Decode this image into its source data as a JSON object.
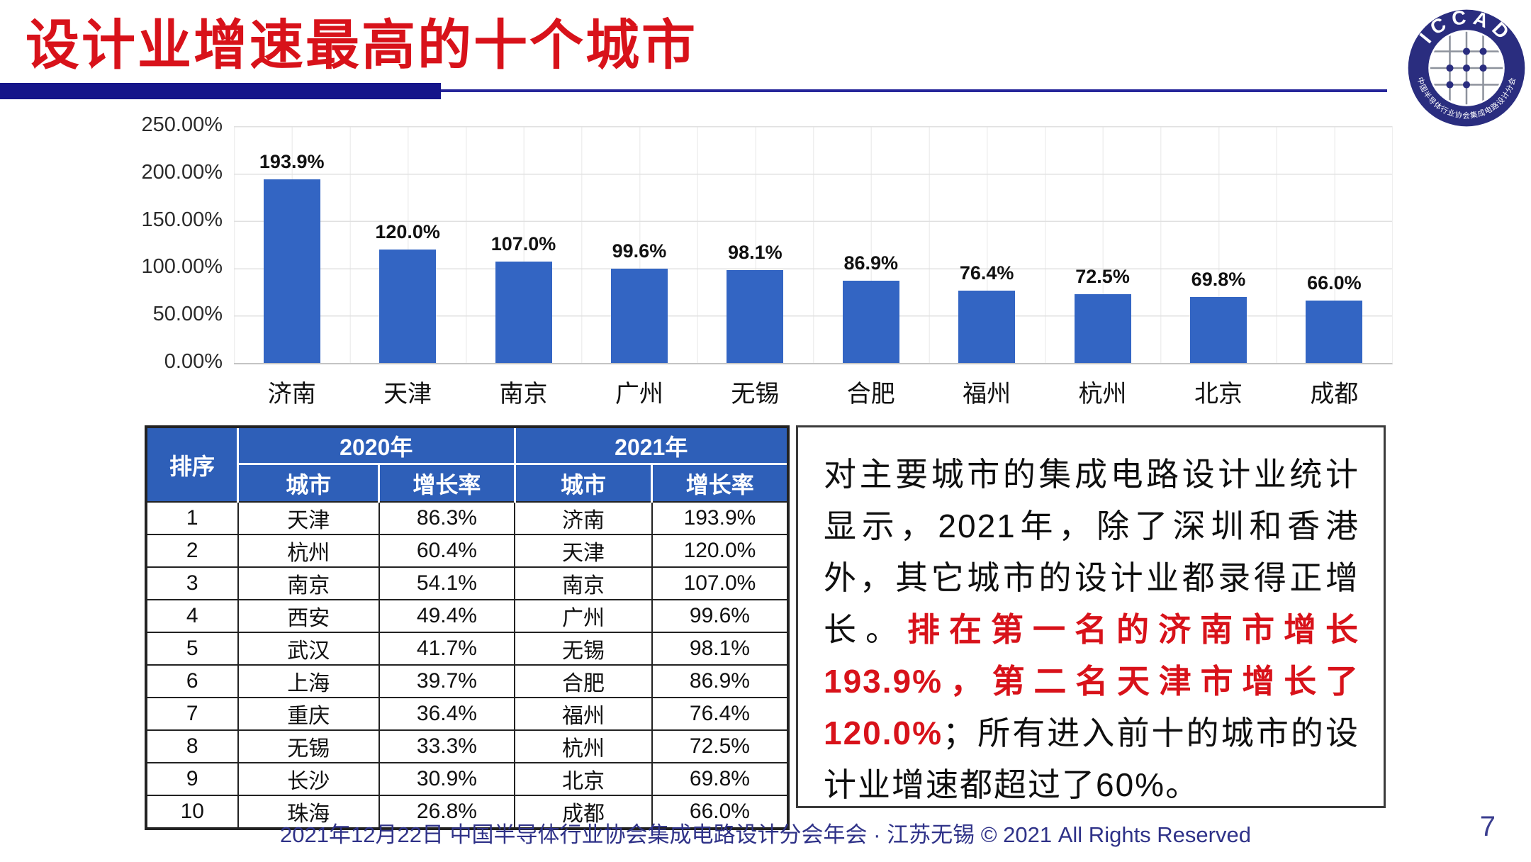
{
  "title": "设计业增速最高的十个城市",
  "colors": {
    "bar_blue": "#3365C3",
    "table_header_blue": "#2E5FB8",
    "accent_red": "#D8121A",
    "divider_navy": "#15158A",
    "footer_navy": "#2F3288"
  },
  "chart_data": {
    "type": "bar",
    "title": "",
    "xlabel": "",
    "ylabel": "",
    "categories": [
      "济南",
      "天津",
      "南京",
      "广州",
      "无锡",
      "合肥",
      "福州",
      "杭州",
      "北京",
      "成都"
    ],
    "values": [
      193.9,
      120.0,
      107.0,
      99.6,
      98.1,
      86.9,
      76.4,
      72.5,
      69.8,
      66.0
    ],
    "labels": [
      "193.9%",
      "120.0%",
      "107.0%",
      "99.6%",
      "98.1%",
      "86.9%",
      "76.4%",
      "72.5%",
      "69.8%",
      "66.0%"
    ],
    "yticks": [
      "250.00%",
      "200.00%",
      "150.00%",
      "100.00%",
      "50.00%",
      "0.00%"
    ],
    "ylim": [
      0,
      250
    ],
    "grid": "horizontal and vertical light gray",
    "legend": "none",
    "bar_color": "#3365C3"
  },
  "table": {
    "rank_header": "排序",
    "year_groups": [
      "2020年",
      "2021年"
    ],
    "sub_headers": [
      "城市",
      "增长率",
      "城市",
      "增长率"
    ],
    "rows": [
      [
        "1",
        "天津",
        "86.3%",
        "济南",
        "193.9%"
      ],
      [
        "2",
        "杭州",
        "60.4%",
        "天津",
        "120.0%"
      ],
      [
        "3",
        "南京",
        "54.1%",
        "南京",
        "107.0%"
      ],
      [
        "4",
        "西安",
        "49.4%",
        "广州",
        "99.6%"
      ],
      [
        "5",
        "武汉",
        "41.7%",
        "无锡",
        "98.1%"
      ],
      [
        "6",
        "上海",
        "39.7%",
        "合肥",
        "86.9%"
      ],
      [
        "7",
        "重庆",
        "36.4%",
        "福州",
        "76.4%"
      ],
      [
        "8",
        "无锡",
        "33.3%",
        "杭州",
        "72.5%"
      ],
      [
        "9",
        "长沙",
        "30.9%",
        "北京",
        "69.8%"
      ],
      [
        "10",
        "珠海",
        "26.8%",
        "成都",
        "66.0%"
      ]
    ]
  },
  "textbox": {
    "segments": [
      {
        "text": "对主要城市的集成电路设计业统计显示，2021年，除了深圳和香港外，其它城市的设计业都录得正增长。",
        "style": "normal"
      },
      {
        "text": "排在第一名的济南市增长193.9%，第二名天津市增长了120.0%",
        "style": "red"
      },
      {
        "text": "；所有进入前十的城市的设计业增速都超过了60%。",
        "style": "normal"
      }
    ]
  },
  "logo": {
    "top_text": "ICCAD",
    "bottom_text": "中国半导体行业协会集成电路设计分会"
  },
  "footer": {
    "text": "2021年12月22日 中国半导体行业协会集成电路设计分会年会 · 江苏无锡 © 2021 All Rights Reserved",
    "page": "7"
  }
}
